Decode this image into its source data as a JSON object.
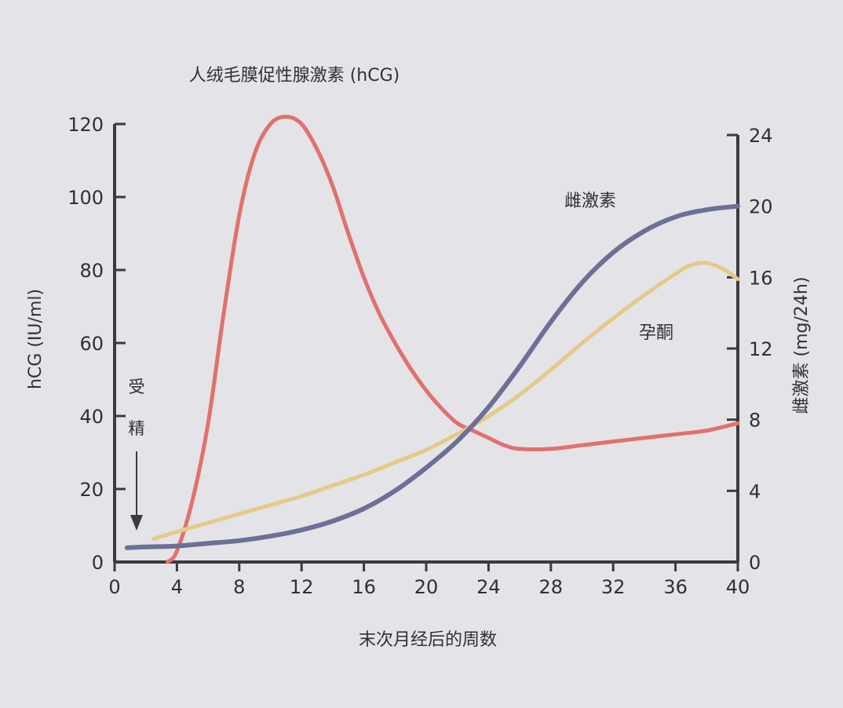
{
  "chart_data": {
    "type": "line",
    "title": "人绒毛膜促性腺激素 (hCG)",
    "xlabel": "末次月经后的周数",
    "ylabel_left": "hCG (IU/ml)",
    "ylabel_right": "雌激素 (mg/24h)",
    "xlim": [
      0,
      40
    ],
    "ylim_left": [
      0,
      120
    ],
    "ylim_right": [
      0,
      24
    ],
    "xticks": [
      0,
      4,
      8,
      12,
      16,
      20,
      24,
      28,
      32,
      36,
      40
    ],
    "yticks_left": [
      0,
      20,
      40,
      60,
      80,
      100,
      120
    ],
    "yticks_right": [
      0,
      4,
      8,
      12,
      16,
      20,
      24
    ],
    "grid": false,
    "annotation": {
      "text_line1": "受",
      "text_line2": "精",
      "x": 2
    },
    "series": [
      {
        "name": "",
        "axis": "left",
        "color": "#e0716c",
        "x": [
          3.4,
          4,
          5,
          6,
          7,
          8,
          9,
          10,
          11,
          12,
          13,
          14,
          15,
          16,
          17,
          18,
          19,
          20,
          21,
          22,
          23,
          24,
          25,
          26,
          28,
          30,
          32,
          34,
          36,
          38,
          40
        ],
        "y": [
          0,
          3,
          17,
          38,
          68,
          95,
          112,
          120,
          122,
          120,
          113,
          103,
          90,
          78,
          68,
          60,
          53,
          47,
          42,
          38,
          36,
          34,
          32,
          31,
          31,
          32,
          33,
          34,
          35,
          36,
          38
        ]
      },
      {
        "name": "孕酮",
        "axis": "right",
        "color": "#e6c986",
        "x": [
          2.5,
          4,
          6,
          8,
          10,
          12,
          14,
          16,
          18,
          20,
          22,
          24,
          26,
          28,
          30,
          32,
          34,
          36,
          37,
          38,
          39,
          40
        ],
        "y": [
          1.3,
          1.7,
          2.2,
          2.7,
          3.2,
          3.7,
          4.3,
          4.9,
          5.6,
          6.3,
          7.2,
          8.2,
          9.4,
          10.8,
          12.3,
          13.7,
          15.0,
          16.2,
          16.7,
          16.8,
          16.5,
          15.9
        ]
      },
      {
        "name": "雌激素",
        "axis": "right",
        "color": "#6c6f96",
        "x": [
          0.8,
          2,
          4,
          6,
          8,
          10,
          12,
          14,
          16,
          18,
          20,
          22,
          24,
          26,
          28,
          30,
          32,
          34,
          36,
          38,
          40
        ],
        "y": [
          0.8,
          0.85,
          0.9,
          1.05,
          1.2,
          1.45,
          1.8,
          2.3,
          3.0,
          4.0,
          5.3,
          6.8,
          8.7,
          11.0,
          13.5,
          15.7,
          17.4,
          18.6,
          19.4,
          19.8,
          20.0
        ]
      }
    ]
  },
  "colors": {
    "background": "#e4e3e8",
    "axis": "#3a3a42",
    "hcg": "#e0716c",
    "progesterone": "#e6c986",
    "estrogen": "#6c6f96"
  }
}
